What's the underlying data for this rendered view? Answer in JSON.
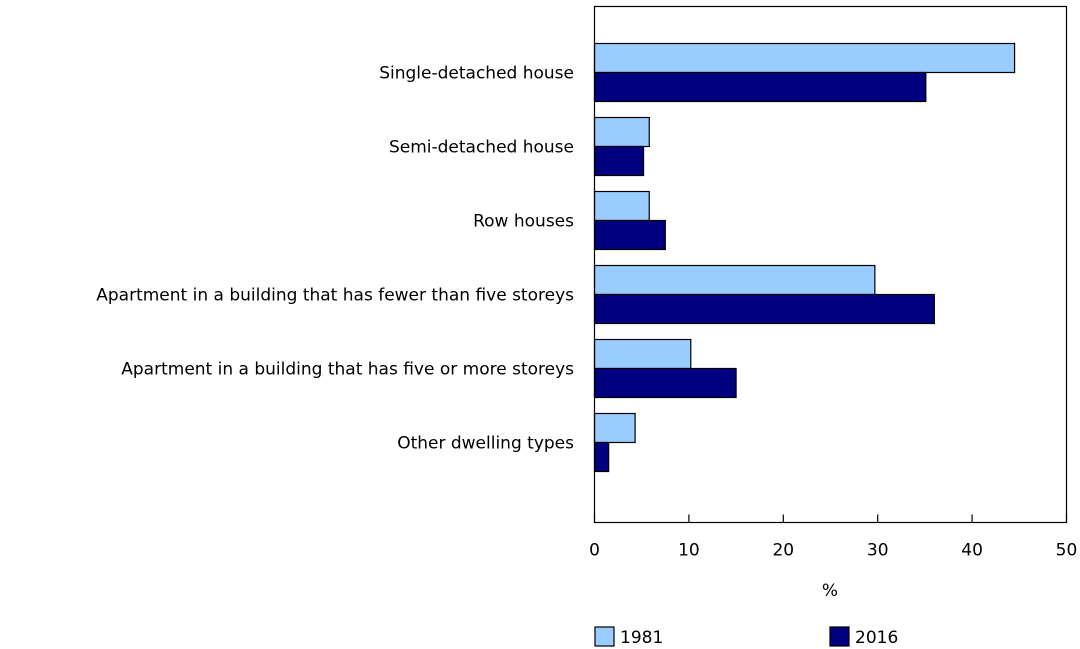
{
  "chart_data": {
    "type": "bar",
    "orientation": "horizontal",
    "categories": [
      "Single-detached house",
      "Semi-detached house",
      "Row houses",
      "Apartment in a building that has fewer than five storeys",
      "Apartment in a building that has five or more storeys",
      "Other dwelling types"
    ],
    "series": [
      {
        "name": "1981",
        "color": "#99ccff",
        "values": [
          44.5,
          5.8,
          5.8,
          29.7,
          10.2,
          4.3
        ]
      },
      {
        "name": "2016",
        "color": "#000080",
        "values": [
          35.1,
          5.2,
          7.5,
          36.0,
          15.0,
          1.5
        ]
      }
    ],
    "xlabel": "%",
    "ylabel": "",
    "xlim": [
      0,
      50
    ],
    "xticks": [
      0,
      10,
      20,
      30,
      40,
      50
    ],
    "grid": false,
    "legend_position": "bottom"
  }
}
